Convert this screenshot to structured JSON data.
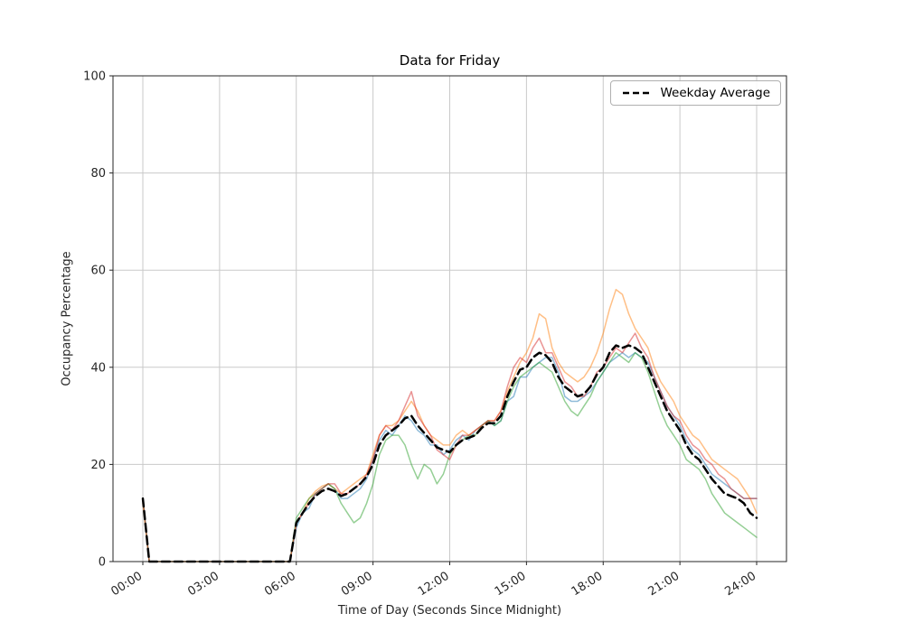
{
  "chart_data": {
    "type": "line",
    "title": "Data for Friday",
    "xlabel": "Time of Day (Seconds Since Midnight)",
    "ylabel": "Occupancy Percentage",
    "xlim_hours": [
      0,
      24
    ],
    "ylim": [
      0,
      100
    ],
    "grid": true,
    "x_tick_hours": [
      0,
      3,
      6,
      9,
      12,
      15,
      18,
      21,
      24
    ],
    "x_tick_labels": [
      "00:00",
      "03:00",
      "06:00",
      "09:00",
      "12:00",
      "15:00",
      "18:00",
      "21:00",
      "24:00"
    ],
    "y_ticks": [
      0,
      20,
      40,
      60,
      80,
      100
    ],
    "legend_entries": [
      "Weekday Average"
    ],
    "legend_position": "upper right",
    "x_step_hours": 0.25,
    "series": [
      {
        "name": "series-1",
        "color": "#1f77b4",
        "opacity": 0.5,
        "width": 1.5,
        "dashed": false,
        "values": [
          13,
          0,
          0,
          0,
          0,
          0,
          0,
          0,
          0,
          0,
          0,
          0,
          0,
          0,
          0,
          0,
          0,
          0,
          0,
          0,
          0,
          0,
          0,
          0,
          7,
          10,
          11,
          14,
          15,
          16,
          15,
          13,
          13,
          14,
          15,
          17,
          21,
          25,
          27,
          26,
          28,
          30,
          29,
          27,
          26,
          24,
          24,
          22,
          23,
          25,
          26,
          25,
          27,
          28,
          29,
          28,
          29,
          33,
          34,
          38,
          38,
          40,
          41,
          42,
          42,
          39,
          34,
          33,
          33,
          34,
          35,
          37,
          39,
          41,
          42,
          43,
          42,
          43,
          42,
          41,
          38,
          35,
          32,
          30,
          28,
          25,
          23,
          22,
          20,
          18,
          17,
          16,
          15,
          14,
          13,
          13,
          13
        ]
      },
      {
        "name": "series-2",
        "color": "#ff7f0e",
        "opacity": 0.5,
        "width": 1.5,
        "dashed": false,
        "values": [
          12,
          0,
          0,
          0,
          0,
          0,
          0,
          0,
          0,
          0,
          0,
          0,
          0,
          0,
          0,
          0,
          0,
          0,
          0,
          0,
          0,
          0,
          0,
          0,
          8,
          10,
          13,
          14.5,
          15.5,
          16,
          15,
          14,
          15,
          16,
          17,
          18,
          22,
          26,
          28,
          28,
          29,
          31,
          33,
          31,
          28,
          26,
          25,
          24,
          24,
          26,
          27,
          26,
          27,
          28,
          29,
          29,
          31,
          35,
          38,
          41,
          43,
          46,
          51,
          50,
          44,
          41,
          39,
          38,
          37,
          38,
          40,
          43,
          47,
          52,
          56,
          55,
          51,
          48,
          46,
          44,
          40,
          37,
          35,
          33,
          30,
          28,
          26,
          25,
          23,
          21,
          20,
          19,
          18,
          17,
          15,
          13,
          10
        ]
      },
      {
        "name": "series-3",
        "color": "#2ca02c",
        "opacity": 0.5,
        "width": 1.5,
        "dashed": false,
        "values": [
          13,
          0,
          0,
          0,
          0,
          0,
          0,
          0,
          0,
          0,
          0,
          0,
          0,
          0,
          0,
          0,
          0,
          0,
          0,
          0,
          0,
          0,
          0,
          0,
          9,
          11,
          13,
          14,
          15,
          16,
          15,
          12,
          10,
          8,
          9,
          12,
          16,
          22,
          25,
          26,
          26,
          24,
          20,
          17,
          20,
          19,
          16,
          18,
          22,
          24,
          25,
          26,
          26,
          28,
          29,
          28,
          29,
          33,
          36,
          38,
          39,
          40,
          41,
          40,
          39,
          36,
          33,
          31,
          30,
          32,
          34,
          37,
          39,
          41,
          43,
          42,
          41,
          43,
          42,
          39,
          35,
          31,
          28,
          26,
          24,
          21,
          20,
          19,
          17,
          14,
          12,
          10,
          9,
          8,
          7,
          6,
          5
        ]
      },
      {
        "name": "series-4",
        "color": "#d62728",
        "opacity": 0.5,
        "width": 1.5,
        "dashed": false,
        "values": [
          13,
          0,
          0,
          0,
          0,
          0,
          0,
          0,
          0,
          0,
          0,
          0,
          0,
          0,
          0,
          0,
          0,
          0,
          0,
          0,
          0,
          0,
          0,
          0,
          8,
          10,
          12,
          14,
          15,
          16,
          16,
          14,
          14,
          15,
          16,
          18,
          21,
          26,
          28,
          27,
          29,
          32,
          35,
          30,
          28,
          26,
          23,
          22,
          21,
          24,
          26,
          26,
          27,
          28,
          29,
          29,
          31,
          36,
          40,
          42,
          41,
          44,
          46,
          43,
          43,
          40,
          37,
          36,
          34,
          34,
          36,
          39,
          40,
          42,
          44,
          43,
          45,
          47,
          44,
          42,
          38,
          35,
          32,
          30,
          29,
          26,
          24,
          23,
          21,
          20,
          18,
          17,
          15,
          14,
          13,
          13,
          13
        ]
      },
      {
        "name": "Weekday Average",
        "color": "#000000",
        "opacity": 1,
        "width": 2.5,
        "dashed": true,
        "values": [
          13,
          0,
          0,
          0,
          0,
          0,
          0,
          0,
          0,
          0,
          0,
          0,
          0,
          0,
          0,
          0,
          0,
          0,
          0,
          0,
          0,
          0,
          0,
          0,
          8,
          10,
          12,
          13.5,
          14.5,
          15,
          14.5,
          13.5,
          14,
          15,
          16,
          17.5,
          20,
          24,
          26,
          27,
          28,
          29.5,
          30,
          28,
          26.5,
          25,
          23.5,
          23,
          22.5,
          24,
          25,
          25.5,
          26,
          27.5,
          28.5,
          28.5,
          30,
          34,
          37,
          39.5,
          40,
          42,
          43,
          42.5,
          41,
          38,
          36,
          35,
          34,
          34.5,
          36,
          38.5,
          40,
          43,
          44.5,
          44,
          44.5,
          44,
          43,
          40,
          37,
          34,
          31,
          29,
          27,
          24,
          22,
          21,
          19,
          17,
          15.5,
          14,
          13.5,
          13,
          12,
          10,
          9
        ]
      }
    ]
  }
}
